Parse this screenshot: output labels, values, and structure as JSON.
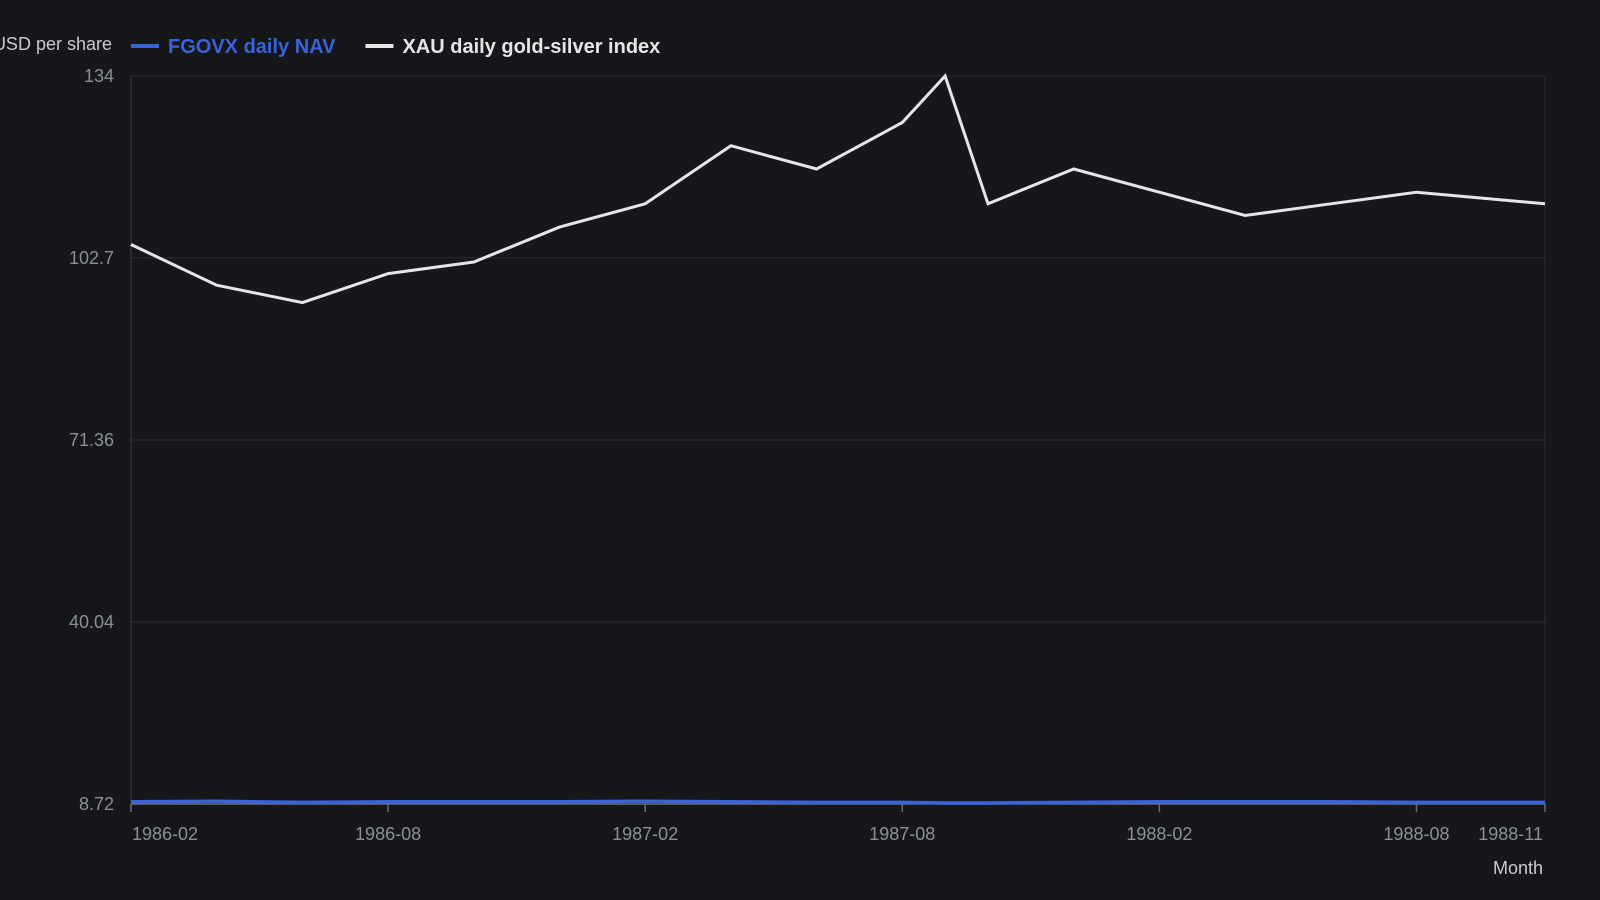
{
  "chart_data": {
    "type": "line",
    "title": "",
    "ylabel": "USD per share",
    "xlabel": "Month",
    "ylim": [
      8.72,
      134
    ],
    "y_ticks": [
      "8.72",
      "40.04",
      "71.36",
      "102.7",
      "134"
    ],
    "x_ticks": [
      "1986-02",
      "1986-08",
      "1987-02",
      "1987-08",
      "1988-02",
      "1988-08",
      "1988-11"
    ],
    "x": [
      "1986-02",
      "1986-04",
      "1986-06",
      "1986-08",
      "1986-10",
      "1986-12",
      "1987-02",
      "1987-04",
      "1987-06",
      "1987-08",
      "1987-09",
      "1987-10",
      "1987-12",
      "1988-02",
      "1988-04",
      "1988-06",
      "1988-08",
      "1988-11"
    ],
    "grid": true,
    "legend_position": "top-left",
    "series": [
      {
        "name": "FGOVX daily NAV",
        "color": "#3a62d9",
        "values": [
          9.1,
          9.2,
          9.0,
          9.1,
          9.1,
          9.1,
          9.2,
          9.1,
          9.0,
          9.0,
          8.9,
          8.9,
          9.0,
          9.1,
          9.1,
          9.1,
          9.0,
          9.0
        ]
      },
      {
        "name": "XAU daily gold-silver index",
        "color": "#e6e6e6",
        "values": [
          105.0,
          98.0,
          95.0,
          100.0,
          102.0,
          108.0,
          112.0,
          122.0,
          118.0,
          126.0,
          134.0,
          112.0,
          118.0,
          114.0,
          110.0,
          112.0,
          114.0,
          112.0
        ]
      }
    ]
  }
}
